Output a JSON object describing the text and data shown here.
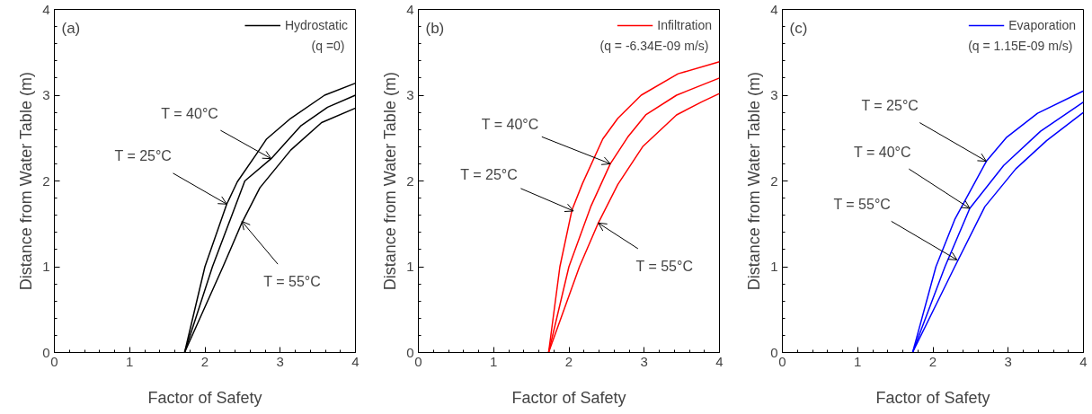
{
  "chart_data": [
    {
      "type": "line",
      "xlabel": "Factor of Safety",
      "ylabel": "Distance from Water Table (m)",
      "xlim": [
        0,
        4
      ],
      "ylim": [
        0,
        4
      ],
      "xticks": [
        0,
        1,
        2,
        3,
        4
      ],
      "yticks": [
        0,
        1,
        2,
        3,
        4
      ],
      "grid": false,
      "legend": "top right",
      "marker": "none",
      "line_style": "solid",
      "annotations": [
        "(a)",
        "(q =0)",
        {
          "text": "T = 40°C",
          "x": 2.88,
          "y": 2.26
        },
        {
          "text": "T = 25°C",
          "x": 2.29,
          "y": 1.73
        },
        {
          "text": "T = 55°C",
          "x": 2.49,
          "y": 1.53
        }
      ],
      "series": [
        {
          "name": "Hydrostatic",
          "color": "#000000",
          "x": [
            1.73,
            2.0,
            2.29,
            2.43,
            2.69,
            2.82,
            3.14,
            3.59,
            4.0
          ],
          "values": [
            0,
            1.0,
            1.73,
            1.99,
            2.32,
            2.49,
            2.73,
            3.0,
            3.14
          ]
        },
        {
          "color": "#000000",
          "x": [
            1.73,
            2.1,
            2.53,
            2.88,
            3.27,
            3.63,
            4.0
          ],
          "values": [
            0,
            1.0,
            2.0,
            2.26,
            2.64,
            2.86,
            3.0
          ]
        },
        {
          "color": "#000000",
          "x": [
            1.73,
            2.24,
            2.49,
            2.73,
            3.14,
            3.55,
            4.0
          ],
          "values": [
            0,
            1.0,
            1.51,
            1.92,
            2.36,
            2.68,
            2.85
          ]
        }
      ]
    },
    {
      "type": "line",
      "xlabel": "Factor of Safety",
      "ylabel": "Distance from Water Table (m)",
      "xlim": [
        0,
        4
      ],
      "ylim": [
        0,
        4
      ],
      "xticks": [
        0,
        1,
        2,
        3,
        4
      ],
      "yticks": [
        0,
        1,
        2,
        3,
        4
      ],
      "grid": false,
      "legend": "top right",
      "marker": "none",
      "line_style": "solid",
      "annotations": [
        "(b)",
        "(q = -6.34E-09 m/s)",
        {
          "text": "T = 40°C",
          "x": 2.55,
          "y": 2.2
        },
        {
          "text": "T = 25°C",
          "x": 2.06,
          "y": 1.65
        },
        {
          "text": "T = 55°C",
          "x": 2.39,
          "y": 1.51
        }
      ],
      "series": [
        {
          "name": "Infiltration",
          "color": "#ff0000",
          "x": [
            1.73,
            1.88,
            2.04,
            2.18,
            2.45,
            2.65,
            2.96,
            3.45,
            4.0
          ],
          "values": [
            0,
            1.0,
            1.66,
            1.97,
            2.49,
            2.73,
            3.0,
            3.25,
            3.39
          ]
        },
        {
          "color": "#ff0000",
          "x": [
            1.73,
            2.0,
            2.29,
            2.55,
            2.78,
            3.02,
            3.43,
            4.0
          ],
          "values": [
            0,
            1.0,
            1.7,
            2.2,
            2.51,
            2.77,
            3.0,
            3.2
          ]
        },
        {
          "color": "#ff0000",
          "x": [
            1.73,
            2.14,
            2.39,
            2.65,
            2.98,
            3.43,
            3.76,
            4.0
          ],
          "values": [
            0,
            1.0,
            1.51,
            1.96,
            2.4,
            2.77,
            2.92,
            3.02
          ]
        }
      ]
    },
    {
      "type": "line",
      "xlabel": "Factor of Safety",
      "ylabel": "Distance from Water Table (m)",
      "xlim": [
        0,
        4
      ],
      "ylim": [
        0,
        4
      ],
      "xticks": [
        0,
        1,
        2,
        3,
        4
      ],
      "yticks": [
        0,
        1,
        2,
        3,
        4
      ],
      "grid": false,
      "legend": "top right",
      "marker": "none",
      "line_style": "solid",
      "annotations": [
        "(c)",
        "(q = 1.15E-09 m/s)",
        {
          "text": "T = 25°C",
          "x": 2.71,
          "y": 2.23
        },
        {
          "text": "T = 40°C",
          "x": 2.49,
          "y": 1.68
        },
        {
          "text": "T = 55°C",
          "x": 2.32,
          "y": 1.08
        }
      ],
      "series": [
        {
          "name": "Evaporation",
          "color": "#0000ff",
          "x": [
            1.73,
            2.04,
            2.29,
            2.71,
            2.98,
            3.39,
            4.0
          ],
          "values": [
            0,
            1.0,
            1.55,
            2.23,
            2.51,
            2.79,
            3.05
          ]
        },
        {
          "color": "#0000ff",
          "x": [
            1.73,
            2.16,
            2.49,
            2.94,
            3.43,
            4.0
          ],
          "values": [
            0,
            1.0,
            1.68,
            2.18,
            2.58,
            2.92
          ]
        },
        {
          "color": "#0000ff",
          "x": [
            1.73,
            2.29,
            2.69,
            3.1,
            3.51,
            4.0
          ],
          "values": [
            0,
            1.0,
            1.7,
            2.14,
            2.47,
            2.8
          ]
        }
      ]
    }
  ]
}
